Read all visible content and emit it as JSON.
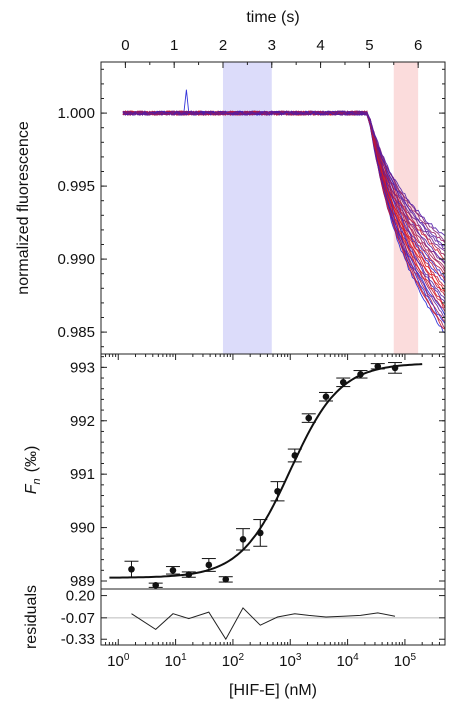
{
  "chart_data": [
    {
      "panel": "top",
      "type": "line",
      "xlabel": "time (s)",
      "ylabel": "normalized fluorescence",
      "xlim": [
        -0.5,
        6.55
      ],
      "ylim": [
        0.9835,
        1.0035
      ],
      "xticks": [
        0,
        1,
        2,
        3,
        4,
        5,
        6
      ],
      "yticks": [
        1.0,
        0.995,
        0.99,
        0.985
      ],
      "ytick_labels": [
        "1.000",
        "0.995",
        "0.990",
        "0.985"
      ],
      "shaded_regions": [
        {
          "x": [
            2.0,
            3.0
          ],
          "color": "#dcdcfa"
        },
        {
          "x": [
            5.5,
            6.0
          ],
          "color": "#fbdcdc"
        }
      ],
      "traces": {
        "count": 32,
        "plateau_x": [
          -0.05,
          4.95
        ],
        "plateau_y": 1.0,
        "drop_start_x": 4.98,
        "end_x": 6.55,
        "end_y_range": [
          0.9849,
          0.9915
        ],
        "colors_from": "#1f1fd6",
        "colors_to": "#e01818"
      }
    },
    {
      "panel": "middle",
      "type": "scatter",
      "xscale": "log",
      "xlabel": "",
      "ylabel_main": "F",
      "ylabel_sub": "n",
      "ylabel_unit": "(‰)",
      "xlim": [
        0.5,
        500000
      ],
      "ylim": [
        988.85,
        993.25
      ],
      "yticks": [
        989,
        990,
        991,
        992,
        993
      ],
      "x": [
        1.7,
        4.5,
        9,
        17,
        38,
        75,
        150,
        300,
        600,
        1200,
        2100,
        4200,
        8400,
        16800,
        33600,
        67200
      ],
      "y": [
        989.22,
        988.92,
        989.2,
        989.12,
        989.3,
        989.03,
        989.78,
        989.9,
        990.68,
        991.35,
        992.05,
        992.45,
        992.72,
        992.87,
        993.02,
        992.99
      ],
      "yerr": [
        0.15,
        0.04,
        0.07,
        0.05,
        0.12,
        0.05,
        0.2,
        0.25,
        0.18,
        0.12,
        0.08,
        0.08,
        0.08,
        0.07,
        0.05,
        0.1
      ],
      "fit": {
        "bottom": 989.06,
        "top": 993.08,
        "ec50": 1000,
        "hill": 1.0,
        "x_range": [
          0.7,
          200000
        ]
      }
    },
    {
      "panel": "bottom",
      "type": "line",
      "xscale": "log",
      "xlabel": "[HIF-E] (nM)",
      "ylabel": "residuals",
      "xlim": [
        0.5,
        500000
      ],
      "ylim": [
        -0.4,
        0.28
      ],
      "yticks": [
        0.2,
        -0.07,
        -0.33
      ],
      "ytick_labels": [
        "0.20",
        "-0.07",
        "-0.33"
      ],
      "xticks": [
        1,
        10,
        100,
        1000,
        10000,
        100000
      ],
      "x": [
        1.7,
        4.5,
        9,
        17,
        38,
        75,
        150,
        300,
        600,
        1200,
        2100,
        4200,
        8400,
        16800,
        33600,
        67200
      ],
      "y": [
        -0.02,
        -0.21,
        -0.02,
        -0.08,
        0.0,
        -0.33,
        0.05,
        -0.16,
        -0.06,
        -0.02,
        -0.04,
        -0.06,
        -0.05,
        -0.04,
        -0.01,
        -0.05
      ],
      "reference_line": -0.07
    }
  ]
}
